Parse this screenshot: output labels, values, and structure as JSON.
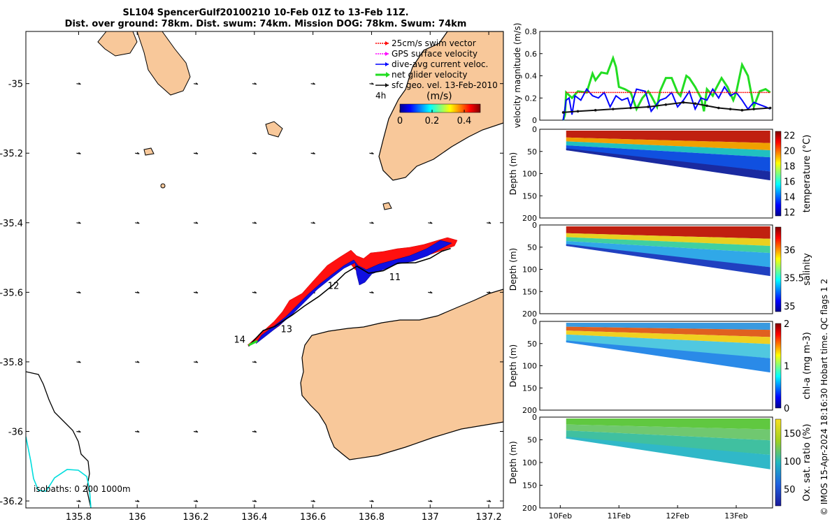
{
  "title_line1": "SL104 SpencerGulf20100210 10-Feb 01Z to 13-Feb 11Z.",
  "title_line2": "Dist. over ground: 78km. Dist. swum: 74km. Mission DOG: 78km. Swum: 74km",
  "credit": "© IMOS 15-Apr-2024 18:16:30 Hobart time. QC flags 1  2",
  "colors": {
    "land": "#f8c89a",
    "track_red": "#ff1010",
    "track_blue": "#1010e0",
    "net_green": "#22dd22",
    "current_blue": "#0000ff",
    "geo_black": "#111111",
    "swim_red": "#ff0000",
    "gps_magenta": "#ff00ff",
    "isobath_cyan": "#00dddd"
  },
  "chart_data": [
    {
      "type": "map",
      "xlim": [
        135.62,
        137.25
      ],
      "ylim": [
        -36.22,
        -34.85
      ],
      "x_ticks": [
        135.8,
        136,
        136.2,
        136.4,
        136.6,
        136.8,
        137,
        137.2
      ],
      "x_tick_labels": [
        "135.8",
        "136",
        "136.2",
        "136.4",
        "136.6",
        "136.8",
        "137",
        "137.2"
      ],
      "y_ticks": [
        -35,
        -35.2,
        -35.4,
        -35.6,
        -35.8,
        -36,
        -36.2
      ],
      "y_tick_labels": [
        "-35",
        "-35.2",
        "-35.4",
        "-35.6",
        "-35.8",
        "-36",
        "-36.2"
      ],
      "legend": [
        {
          "label": "25cm/s swim vector",
          "color": "#ff0000",
          "style": "dotted"
        },
        {
          "label": "GPS surface velocity",
          "color": "#ff00ff",
          "style": "dotted"
        },
        {
          "label": "dive-avg current veloc.",
          "color": "#0000ff",
          "style": "solid"
        },
        {
          "label": "net glider velocity",
          "color": "#22dd22",
          "style": "thick"
        },
        {
          "label": "sfc geo. vel. 13-Feb-2010",
          "color": "#111111",
          "style": "solid"
        }
      ],
      "colorbar": {
        "label": "(m/s)",
        "period_label": "4h",
        "range": [
          0,
          0.5
        ],
        "ticks": [
          0,
          0.2,
          0.4
        ],
        "tick_labels": [
          "0",
          "0.2",
          "0.4"
        ]
      },
      "day_labels": [
        {
          "text": "14",
          "lon": 136.33,
          "lat": -35.745
        },
        {
          "text": "13",
          "lon": 136.49,
          "lat": -35.715
        },
        {
          "text": "12",
          "lon": 136.65,
          "lat": -35.59
        },
        {
          "text": "11",
          "lon": 136.86,
          "lat": -35.565
        }
      ],
      "isobath_legend": "isobaths: 0   200  1000m",
      "track": [
        [
          136.38,
          -35.755
        ],
        [
          136.43,
          -35.71
        ],
        [
          136.47,
          -35.698
        ],
        [
          136.53,
          -35.665
        ],
        [
          136.57,
          -35.64
        ],
        [
          136.62,
          -35.612
        ],
        [
          136.67,
          -35.578
        ],
        [
          136.71,
          -35.545
        ],
        [
          136.75,
          -35.525
        ],
        [
          136.79,
          -35.545
        ],
        [
          136.84,
          -35.538
        ],
        [
          136.89,
          -35.516
        ],
        [
          136.95,
          -35.515
        ],
        [
          137.0,
          -35.502
        ],
        [
          137.04,
          -35.482
        ],
        [
          137.07,
          -35.474
        ]
      ]
    },
    {
      "type": "line",
      "ylabel": "velocity magnitude (m/s)",
      "ylim": [
        0,
        0.8
      ],
      "y_ticks": [
        0,
        0.2,
        0.4,
        0.6,
        0.8
      ],
      "series": [
        {
          "color": "#22dd22",
          "x": [
            10.05,
            10.08,
            10.1,
            10.2,
            10.3,
            10.45,
            10.55,
            10.6,
            10.7,
            10.8,
            10.9,
            10.95,
            11.0,
            11.1,
            11.2,
            11.3,
            11.4,
            11.5,
            11.55,
            11.65,
            11.7,
            11.8,
            11.9,
            12.0,
            12.05,
            12.15,
            12.2,
            12.3,
            12.4,
            12.45,
            12.5,
            12.6,
            12.65,
            12.75,
            12.85,
            12.95,
            13.0,
            13.1,
            13.2,
            13.3,
            13.4,
            13.5,
            13.58
          ],
          "y": [
            0.0,
            0.05,
            0.25,
            0.2,
            0.26,
            0.25,
            0.42,
            0.36,
            0.43,
            0.42,
            0.56,
            0.48,
            0.3,
            0.28,
            0.25,
            0.1,
            0.2,
            0.26,
            0.22,
            0.12,
            0.26,
            0.38,
            0.38,
            0.25,
            0.22,
            0.4,
            0.38,
            0.3,
            0.2,
            0.08,
            0.28,
            0.22,
            0.28,
            0.38,
            0.3,
            0.18,
            0.25,
            0.5,
            0.4,
            0.12,
            0.26,
            0.28,
            0.25
          ]
        },
        {
          "color": "#0000ff",
          "x": [
            10.05,
            10.1,
            10.15,
            10.2,
            10.25,
            10.35,
            10.45,
            10.55,
            10.65,
            10.75,
            10.85,
            10.95,
            11.05,
            11.15,
            11.2,
            11.3,
            11.45,
            11.55,
            11.7,
            11.8,
            11.9,
            12.0,
            12.1,
            12.2,
            12.3,
            12.4,
            12.5,
            12.6,
            12.7,
            12.8,
            12.9,
            13.0,
            13.1,
            13.2,
            13.3,
            13.4,
            13.5,
            13.58
          ],
          "y": [
            0.0,
            0.18,
            0.2,
            0.05,
            0.22,
            0.18,
            0.28,
            0.22,
            0.2,
            0.25,
            0.12,
            0.22,
            0.18,
            0.2,
            0.12,
            0.28,
            0.26,
            0.08,
            0.18,
            0.2,
            0.25,
            0.12,
            0.18,
            0.26,
            0.1,
            0.2,
            0.18,
            0.28,
            0.2,
            0.3,
            0.22,
            0.25,
            0.18,
            0.1,
            0.16,
            0.14,
            0.12,
            0.1
          ]
        },
        {
          "color": "#111111",
          "x": [
            10.05,
            10.3,
            10.6,
            10.9,
            11.2,
            11.5,
            11.8,
            12.1,
            12.3,
            12.5,
            12.7,
            12.9,
            13.1,
            13.3,
            13.58
          ],
          "y": [
            0.07,
            0.08,
            0.09,
            0.1,
            0.11,
            0.12,
            0.14,
            0.16,
            0.15,
            0.13,
            0.11,
            0.1,
            0.09,
            0.1,
            0.11
          ]
        },
        {
          "color": "#ff0000",
          "x": [
            10.1,
            13.58
          ],
          "y": [
            0.25,
            0.25
          ]
        }
      ]
    },
    {
      "type": "heatmap",
      "ylabel": "Depth (m)",
      "cbar_label": "temperature (°C)",
      "cbar_ticks": [
        "12",
        "14",
        "16",
        "18",
        "20",
        "22"
      ],
      "y_tick_labels": [
        "0",
        "50",
        "100",
        "150",
        "200"
      ],
      "cbar_range": [
        11.5,
        22.5
      ]
    },
    {
      "type": "heatmap",
      "ylabel": "Depth (m)",
      "cbar_label": "salinity",
      "cbar_ticks": [
        "35",
        "35.5",
        "36"
      ],
      "y_tick_labels": [
        "0",
        "50",
        "100",
        "150",
        "200"
      ],
      "cbar_range": [
        34.9,
        36.4
      ]
    },
    {
      "type": "heatmap",
      "ylabel": "Depth (m)",
      "cbar_label": "chl-a (mg m-3)",
      "cbar_ticks": [
        "0",
        "1",
        "2"
      ],
      "y_tick_labels": [
        "0",
        "50",
        "100",
        "150",
        "200"
      ],
      "cbar_range": [
        0,
        2
      ]
    },
    {
      "type": "heatmap",
      "ylabel": "Depth (m)",
      "cbar_label": "Ox. sat. ratio (%)",
      "cbar_ticks": [
        "50",
        "100",
        "150"
      ],
      "y_tick_labels": [
        "0",
        "50",
        "100",
        "150",
        "200"
      ],
      "x_tick_labels": [
        "10Feb",
        "11Feb",
        "12Feb",
        "13Feb"
      ],
      "cbar_range": [
        20,
        175
      ]
    }
  ]
}
